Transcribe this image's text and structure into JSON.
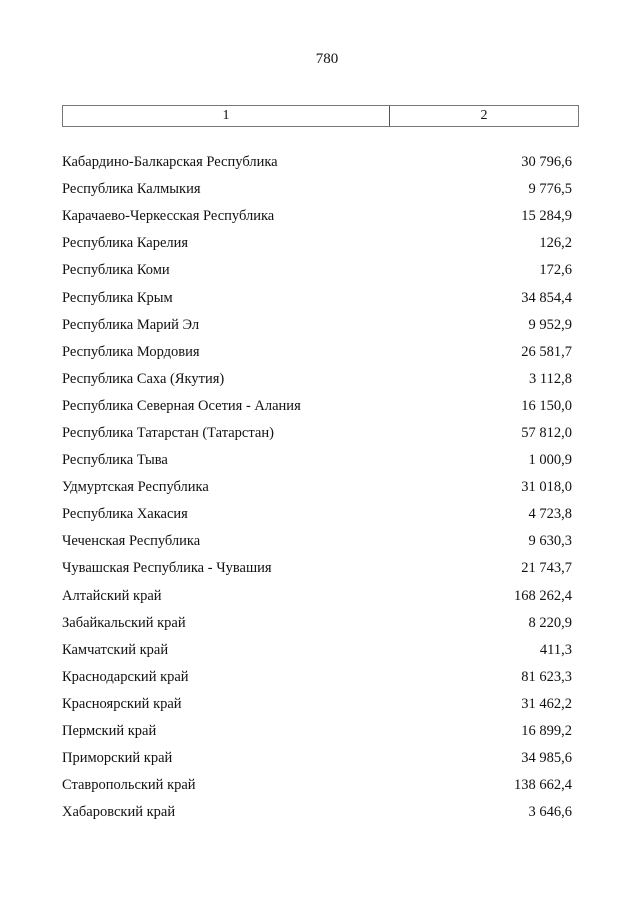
{
  "page_number": "780",
  "table": {
    "headers": [
      "1",
      "2"
    ],
    "rows": [
      {
        "name": "Кабардино-Балкарская Республика",
        "value": "30 796,6"
      },
      {
        "name": "Республика Калмыкия",
        "value": "9 776,5"
      },
      {
        "name": "Карачаево-Черкесская Республика",
        "value": "15 284,9"
      },
      {
        "name": "Республика Карелия",
        "value": "126,2"
      },
      {
        "name": "Республика Коми",
        "value": "172,6"
      },
      {
        "name": "Республика Крым",
        "value": "34 854,4"
      },
      {
        "name": "Республика Марий Эл",
        "value": "9 952,9"
      },
      {
        "name": "Республика Мордовия",
        "value": "26 581,7"
      },
      {
        "name": "Республика Саха (Якутия)",
        "value": "3 112,8"
      },
      {
        "name": "Республика Северная Осетия - Алания",
        "value": "16 150,0"
      },
      {
        "name": "Республика Татарстан (Татарстан)",
        "value": "57 812,0"
      },
      {
        "name": "Республика Тыва",
        "value": "1 000,9"
      },
      {
        "name": "Удмуртская Республика",
        "value": "31 018,0"
      },
      {
        "name": "Республика Хакасия",
        "value": "4 723,8"
      },
      {
        "name": "Чеченская Республика",
        "value": "9 630,3"
      },
      {
        "name": "Чувашская Республика - Чувашия",
        "value": "21 743,7"
      },
      {
        "name": "Алтайский край",
        "value": "168 262,4"
      },
      {
        "name": "Забайкальский край",
        "value": "8 220,9"
      },
      {
        "name": "Камчатский край",
        "value": "411,3"
      },
      {
        "name": "Краснодарский край",
        "value": "81 623,3"
      },
      {
        "name": "Красноярский край",
        "value": "31 462,2"
      },
      {
        "name": "Пермский край",
        "value": "16 899,2"
      },
      {
        "name": "Приморский край",
        "value": "34 985,6"
      },
      {
        "name": "Ставропольский край",
        "value": "138 662,4"
      },
      {
        "name": "Хабаровский край",
        "value": "3 646,6"
      }
    ]
  }
}
